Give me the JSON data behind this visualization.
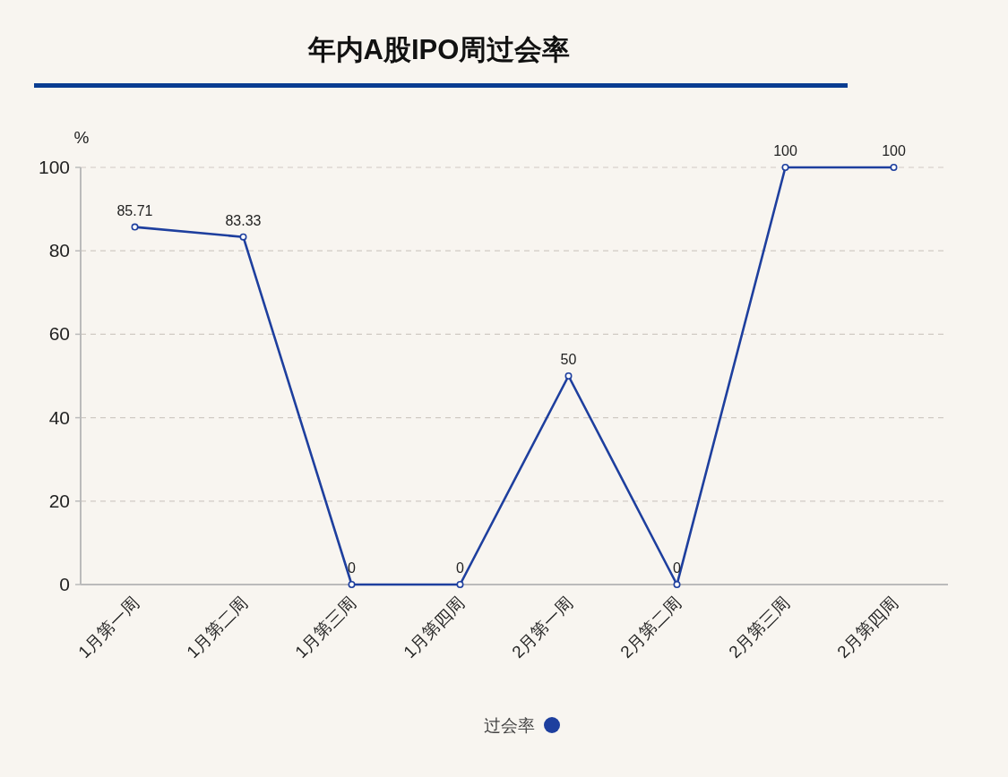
{
  "chart_data": {
    "type": "line",
    "title": "年内A股IPO周过会率",
    "ylabel": "%",
    "categories": [
      "1月第一周",
      "1月第二周",
      "1月第三周",
      "1月第四周",
      "2月第一周",
      "2月第二周",
      "2月第三周",
      "2月第四周"
    ],
    "series": [
      {
        "name": "过会率",
        "color": "#1e3f9e",
        "values": [
          85.71,
          83.33,
          0,
          0,
          50,
          0,
          100,
          100
        ]
      }
    ],
    "ylim": [
      0,
      100
    ],
    "yticks": [
      0,
      20,
      40,
      60,
      80,
      100
    ],
    "grid": "y",
    "legend": "bottom",
    "marker": "circle",
    "line_style": "solid",
    "data_labels": true
  }
}
